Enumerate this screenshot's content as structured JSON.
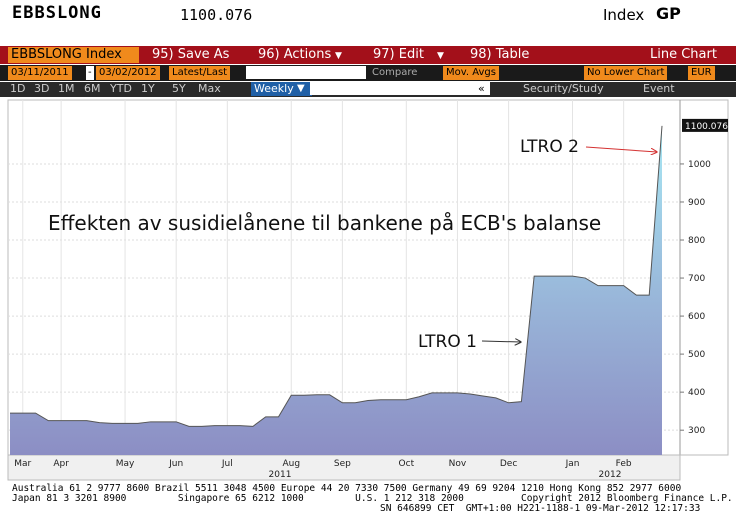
{
  "header": {
    "ticker": "EBBSLONG",
    "market": "Index",
    "tag": "GP"
  },
  "toolbar": {
    "security": "EBBSLONG Index",
    "save": "95) Save As",
    "actions": "96) Actions",
    "edit": "97) Edit",
    "table": "98) Table",
    "view": "Line Chart"
  },
  "settings": {
    "start": "03/11/2011",
    "dash": "-",
    "end": "03/02/2012",
    "field": "Latest/Last",
    "compare": "Compare",
    "mov": "Mov. Avgs",
    "lower": "No Lower Chart",
    "currency": "EUR"
  },
  "periods": [
    "1D",
    "3D",
    "1M",
    "6M",
    "YTD",
    "1Y",
    "5Y",
    "Max"
  ],
  "frequency": "Weekly",
  "collapse": "«",
  "study": "Security/Study",
  "event": "Event",
  "chart_data": {
    "type": "area",
    "title": "Effekten av susidielånene til bankene på ECB's balanse",
    "annotations": [
      "LTRO 1",
      "LTRO 2"
    ],
    "categories": [
      null,
      "Mar",
      null,
      null,
      "Apr",
      null,
      null,
      null,
      null,
      "May",
      null,
      null,
      null,
      "Jun",
      null,
      null,
      null,
      "Jul",
      null,
      null,
      null,
      null,
      "Aug",
      null,
      null,
      null,
      "Sep",
      null,
      null,
      null,
      null,
      "Oct",
      null,
      null,
      null,
      "Nov",
      null,
      null,
      null,
      "Dec",
      null,
      null,
      null,
      null,
      "Jan",
      null,
      null,
      null,
      "Feb",
      null,
      null,
      null
    ],
    "values": [
      345,
      345,
      345,
      325,
      325,
      325,
      325,
      320,
      318,
      318,
      318,
      322,
      322,
      322,
      310,
      310,
      312,
      312,
      312,
      310,
      335,
      335,
      392,
      392,
      393,
      393,
      372,
      372,
      378,
      380,
      380,
      380,
      388,
      398,
      398,
      398,
      395,
      390,
      385,
      372,
      375,
      705,
      705,
      705,
      705,
      700,
      680,
      680,
      680,
      655,
      655,
      1100.076
    ],
    "years": [
      "2011",
      "2012"
    ],
    "ylim": [
      240,
      1155
    ],
    "yticks": [
      300,
      400,
      500,
      600,
      700,
      800,
      900,
      1000
    ],
    "grid": true
  },
  "footer": [
    "Australia 61 2 9777 8600 Brazil 5511 3048 4500 Europe 44 20 7330 7500 Germany 49 69 9204 1210 Hong Kong 852 2977 6000",
    "Japan 81 3 3201 8900         Singapore 65 6212 1000         U.S. 1 212 318 2000          Copyright 2012 Bloomberg Finance L.P.",
    "SN 646899 CET  GMT+1:00 H221-1188-1 09-Mar-2012 12:17:33"
  ]
}
